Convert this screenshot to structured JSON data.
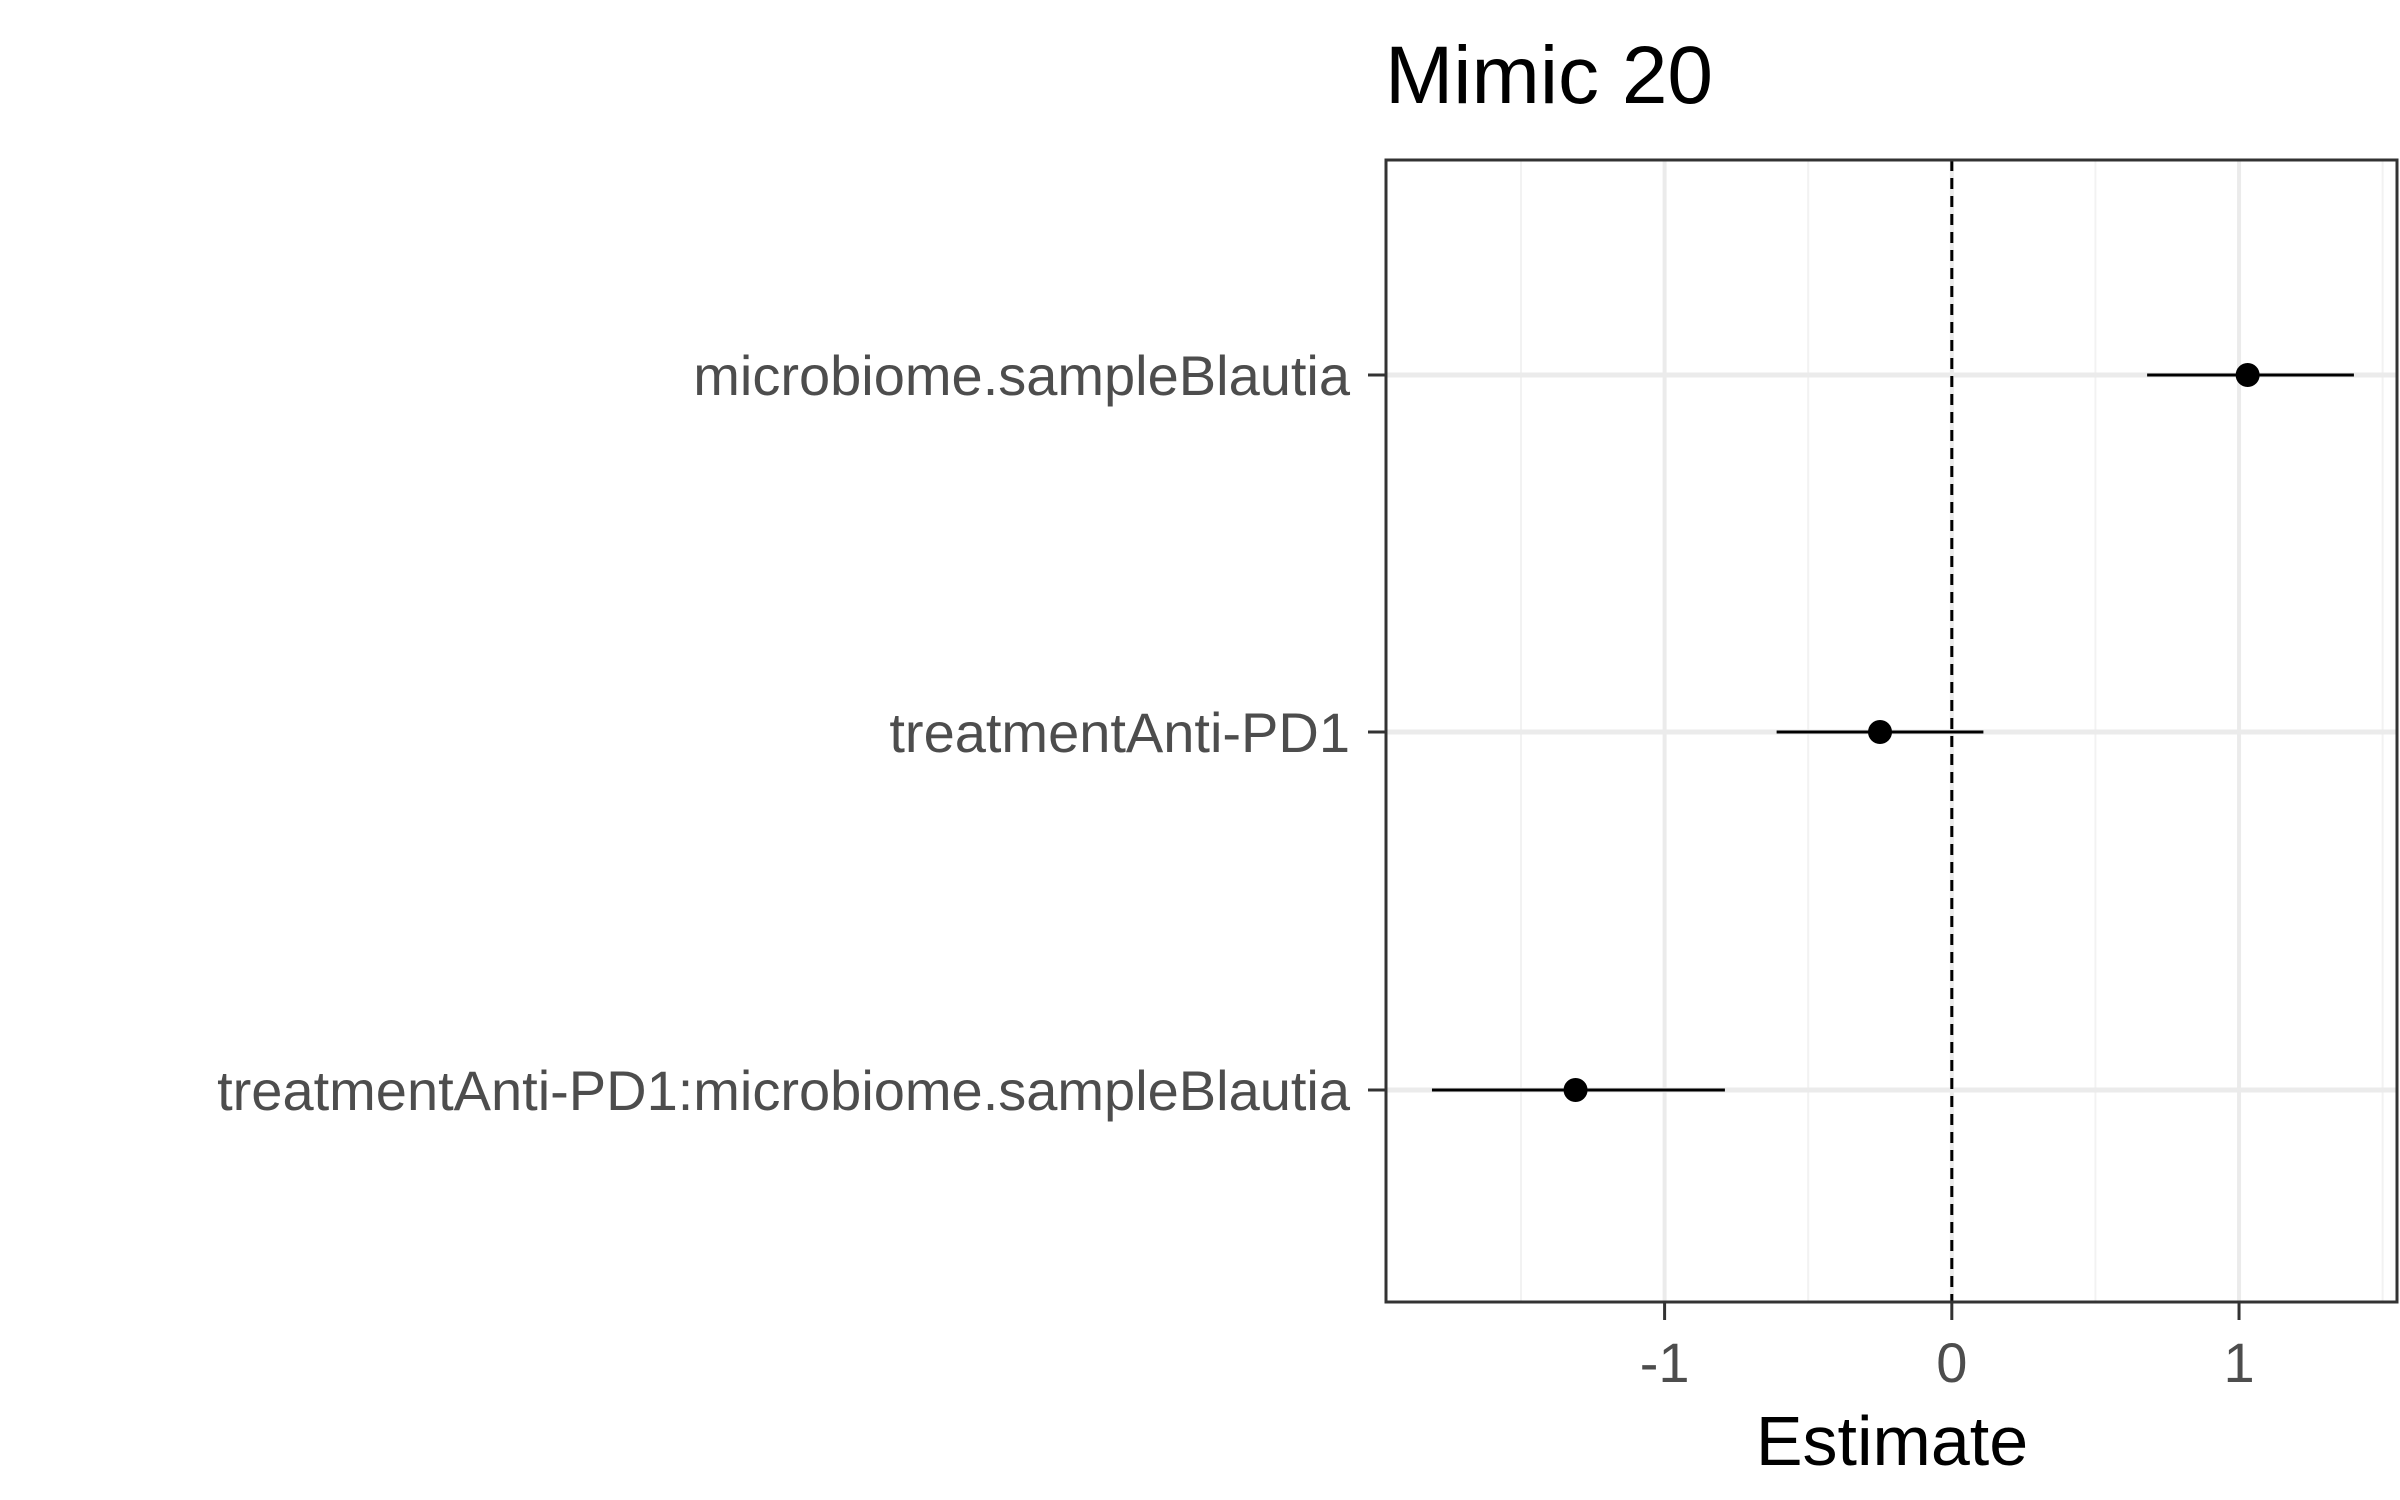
{
  "chart_data": {
    "type": "forest",
    "title": "Mimic 20",
    "xlabel": "Estimate",
    "ylabel": "",
    "xlim": [
      -1.97,
      1.55
    ],
    "x_ticks": [
      -1,
      0,
      1
    ],
    "x_tick_labels": [
      "-1",
      "0",
      "1"
    ],
    "reference_line": 0,
    "grid": true,
    "terms": [
      {
        "label": "microbiome.sampleBlautia",
        "estimate": 1.03,
        "ci_low": 0.68,
        "ci_high": 1.4
      },
      {
        "label": "treatmentAnti-PD1",
        "estimate": -0.25,
        "ci_low": -0.61,
        "ci_high": 0.11
      },
      {
        "label": "treatmentAnti-PD1:microbiome.sampleBlautia",
        "estimate": -1.31,
        "ci_low": -1.81,
        "ci_high": -0.79
      }
    ]
  },
  "colors": {
    "point": "#000000",
    "panel_border": "#333333",
    "grid_major": "#ebebeb",
    "grid_minor": "#f2f2f2",
    "tick_label": "#4d4d4d"
  }
}
